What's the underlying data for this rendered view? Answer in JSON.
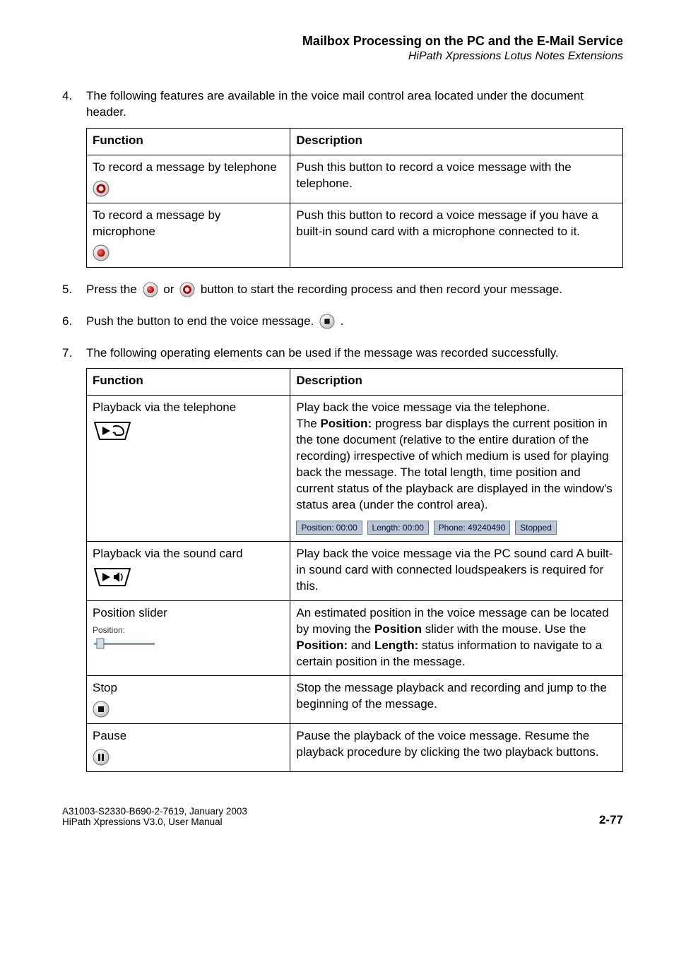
{
  "header": {
    "title": "Mailbox Processing on the PC and the E-Mail Service",
    "subtitle": "HiPath Xpressions Lotus Notes Extensions"
  },
  "step4": {
    "num": "4.",
    "text": "The following features are available in the voice mail control area located under the document header.",
    "table": {
      "head_func": "Function",
      "head_desc": "Description",
      "row1_func": "To record a message by telephone",
      "row1_desc": "Push this button to record a voice message with the telephone.",
      "row2_func": "To record a message by microphone",
      "row2_desc": "Push this button to record a voice message if you have a built-in sound card with a microphone connected to it."
    }
  },
  "step5": {
    "num": "5.",
    "text_a": "Press the ",
    "text_b": " or ",
    "text_c": " button to start the recording process and then record your message."
  },
  "step6": {
    "num": "6.",
    "text_a": "Push the button to end the voice message. ",
    "text_b": " ."
  },
  "step7": {
    "num": "7.",
    "text": "The following operating elements can be used if the message was recorded successfully.",
    "table": {
      "head_func": "Function",
      "head_desc": "Description",
      "row1_func": "Playback via the telephone",
      "row1_desc": "Play back the voice message via the telephone.\nThe <b>Position:</b> progress bar displays the current position in the tone document (relative to the entire duration of the recording) irrespective of which medium is used for playing back the message. The total length, time position and current status of the playback are displayed in the window's status area (under the control area).",
      "row1_status_pos": "Position: 00:00",
      "row1_status_len": "Length: 00:00",
      "row1_status_phone": "Phone: 49240490",
      "row1_status_state": "Stopped",
      "row2_func": "Playback via the sound card",
      "row2_desc": "Play back the voice message via the PC sound card A built-in sound card with connected loudspeakers is required for this.",
      "row3_func": "Position slider",
      "row3_slider_label": "Position:",
      "row3_desc": "An estimated position in the voice message can be located by moving the <b>Position</b> slider with the mouse. Use the <b>Position:</b> and <b>Length:</b> status information to navigate to a certain position in the message.",
      "row4_func": "Stop",
      "row4_desc": "Stop the message playback and recording and jump to the beginning of the message.",
      "row5_func": "Pause",
      "row5_desc": "Pause the playback of the voice message. Resume the playback procedure by clicking the two playback buttons."
    }
  },
  "footer": {
    "line1": "A31003-S2330-B690-2-7619, January 2003",
    "line2": "HiPath Xpressions V3.0, User Manual",
    "page": "2-77"
  },
  "icons": {
    "rec_tele_outer": "#6a6a6a",
    "rec_tele_inner": "#b00000",
    "rec_mic_outer": "#6a6a6a",
    "rec_mic_inner": "#d00000",
    "stop_outer": "#6a6a6a",
    "stop_inner": "#000000",
    "pause_outer": "#6a6a6a",
    "play_fill": "#000000",
    "slider_track": "#8a98a8",
    "slider_thumb": "#d8dee8"
  }
}
